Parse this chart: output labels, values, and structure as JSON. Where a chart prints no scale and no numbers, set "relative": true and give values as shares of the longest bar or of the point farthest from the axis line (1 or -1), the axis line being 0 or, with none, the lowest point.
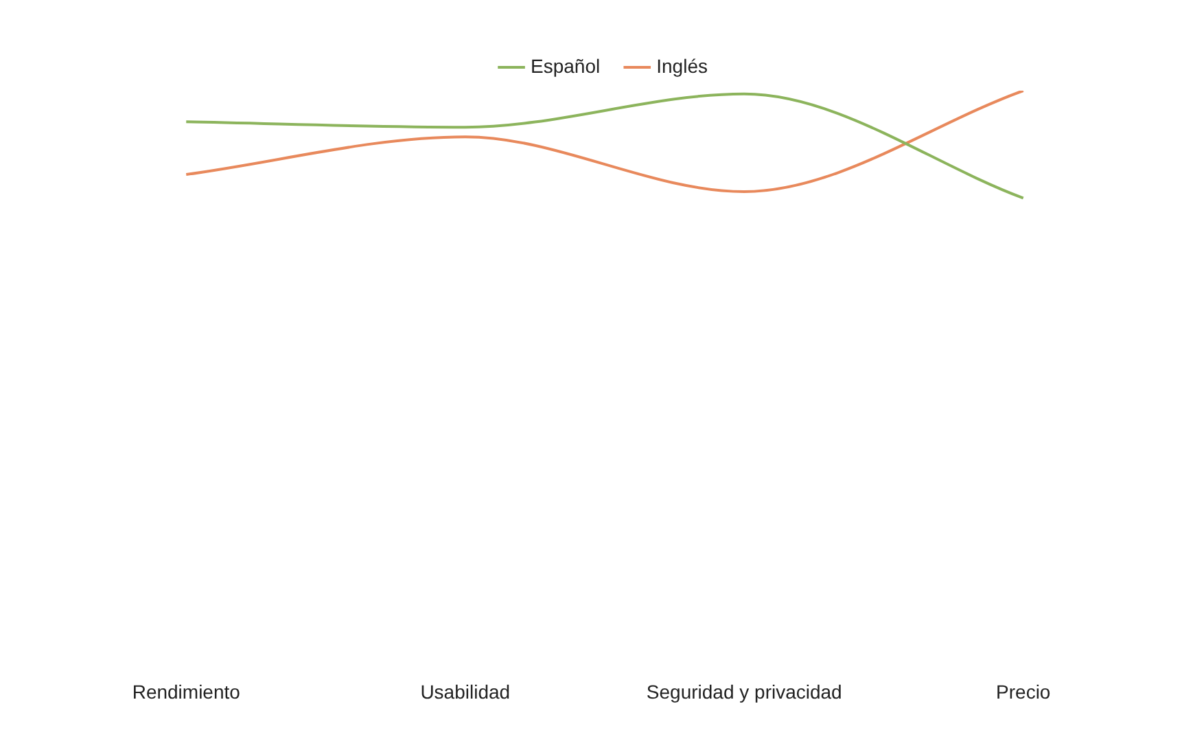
{
  "chart_data": {
    "type": "line",
    "relative": true,
    "categories": [
      "Rendimiento",
      "Usabilidad",
      "Seguridad y privacidad",
      "Precio"
    ],
    "series": [
      {
        "name": "Español",
        "color": "#8cb45c",
        "values": [
          0.71,
          0.66,
          0.97,
          0
        ]
      },
      {
        "name": "Inglés",
        "color": "#e8895c",
        "values": [
          0.22,
          0.57,
          0.06,
          1
        ]
      }
    ],
    "legend": "top",
    "grid": false,
    "marker": "none",
    "line_style": "solid"
  }
}
